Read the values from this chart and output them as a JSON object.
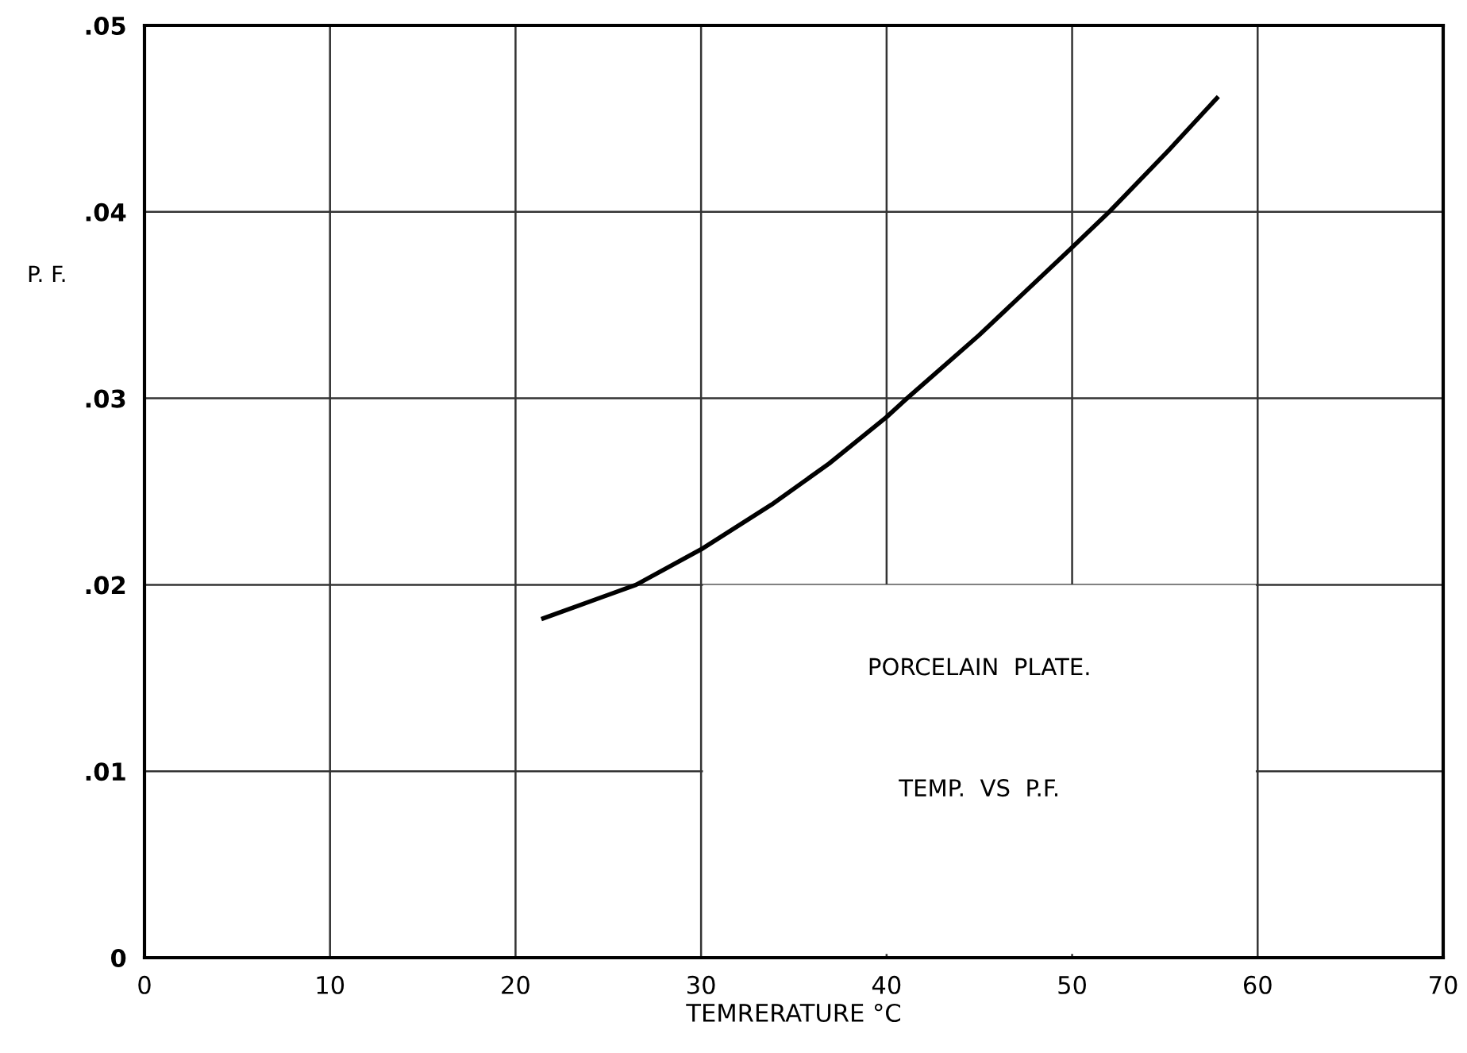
{
  "chart_data": {
    "type": "line",
    "xlabel": "TEMRERATURE °C",
    "ylabel": "P. F.",
    "x": [
      21.5,
      26.5,
      30,
      33.8,
      36.9,
      40,
      41.1,
      45,
      49.9,
      52,
      55.2,
      57.8
    ],
    "series": [
      {
        "color": "#000000",
        "values": [
          0.0182,
          0.02,
          0.0219,
          0.0243,
          0.0265,
          0.029,
          0.03,
          0.0334,
          0.038,
          0.04,
          0.0433,
          0.0461
        ]
      }
    ],
    "xlim": [
      0,
      70
    ],
    "xticks": [
      0,
      10,
      20,
      30,
      40,
      50,
      60,
      70
    ],
    "ylim": [
      0,
      0.05
    ],
    "yticks": [
      {
        "value": 0,
        "label": "0"
      },
      {
        "value": 0.01,
        "label": ".01"
      },
      {
        "value": 0.02,
        "label": ".02"
      },
      {
        "value": 0.03,
        "label": ".03"
      },
      {
        "value": 0.04,
        "label": ".04"
      },
      {
        "value": 0.05,
        "label": ".05"
      }
    ],
    "grid": true,
    "marker": "none",
    "line_style": "solid",
    "annotations": [
      "PORCELAIN  PLATE.",
      "TEMP.  VS  P.F."
    ]
  }
}
